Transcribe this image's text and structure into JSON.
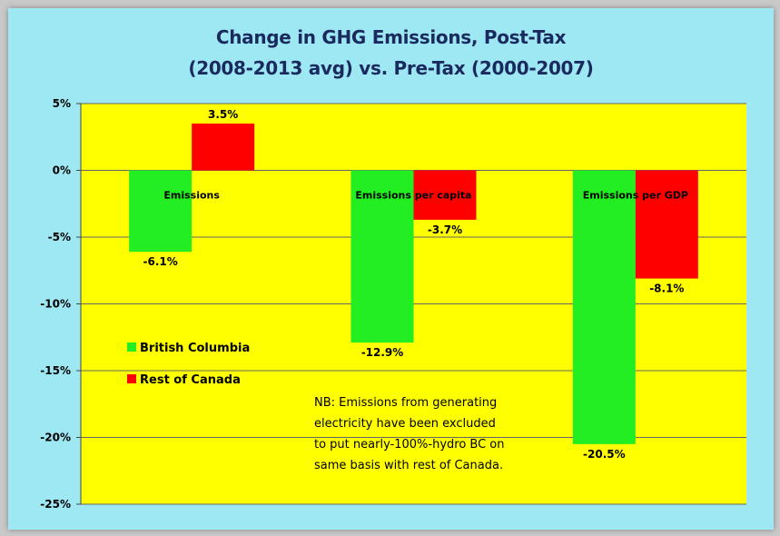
{
  "chart_data": {
    "type": "bar",
    "title": "Change in GHG Emissions, Post-Tax",
    "subtitle": "(2008-2013 avg) vs. Pre-Tax (2000-2007)",
    "categories": [
      "Emissions",
      "Emissions per capita",
      "Emissions per GDP"
    ],
    "series": [
      {
        "name": "British Columbia",
        "color": "#22ee22",
        "values": [
          -6.1,
          -12.9,
          -20.5
        ],
        "labels": [
          "-6.1%",
          "-12.9%",
          "-20.5%"
        ]
      },
      {
        "name": "Rest of Canada",
        "color": "#ff0000",
        "values": [
          3.5,
          -3.7,
          -8.1
        ],
        "labels": [
          "3.5%",
          "-3.7%",
          "-8.1%"
        ]
      }
    ],
    "ylim": [
      -25,
      5
    ],
    "y_ticks": [
      5,
      0,
      -5,
      -10,
      -15,
      -20,
      -25
    ],
    "y_tick_labels": [
      "5%",
      "0%",
      "-5%",
      "-10%",
      "-15%",
      "-20%",
      "-25%"
    ],
    "xlabel": "",
    "ylabel": "",
    "grid": true,
    "plot_background": "#ffff00",
    "legend_position": "inside-left",
    "note_lines": [
      "NB: Emissions from generating",
      "electricity have been excluded",
      "to put nearly-100%-hydro BC on",
      "same basis with rest of Canada."
    ]
  }
}
